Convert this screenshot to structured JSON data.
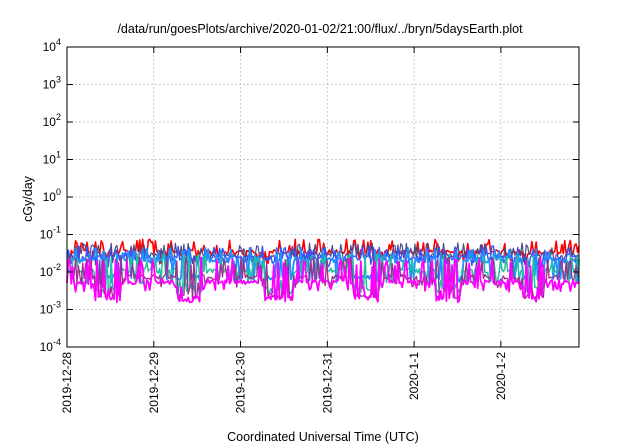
{
  "chart_data": {
    "type": "line",
    "title": "/data/run/goesPlots/archive/2020-01-02/21:00/flux/../bryn/5daysEarth.plot",
    "xlabel": "Coordinated Universal Time (UTC)",
    "ylabel": "cGy/day",
    "yscale": "log",
    "ylim": [
      0.0001,
      10000
    ],
    "xlim": [
      0,
      5.9
    ],
    "grid": true,
    "y_ticks": [
      {
        "base": "10",
        "exp": "-4",
        "value": 0.0001
      },
      {
        "base": "10",
        "exp": "-3",
        "value": 0.001
      },
      {
        "base": "10",
        "exp": "-2",
        "value": 0.01
      },
      {
        "base": "10",
        "exp": "-1",
        "value": 0.1
      },
      {
        "base": "10",
        "exp": "0",
        "value": 1
      },
      {
        "base": "10",
        "exp": "1",
        "value": 10
      },
      {
        "base": "10",
        "exp": "2",
        "value": 100
      },
      {
        "base": "10",
        "exp": "3",
        "value": 1000
      },
      {
        "base": "10",
        "exp": "4",
        "value": 10000
      }
    ],
    "x_ticks": [
      {
        "label": "2019-12-28",
        "value": 0
      },
      {
        "label": "2019-12-29",
        "value": 1
      },
      {
        "label": "2019-12-30",
        "value": 2
      },
      {
        "label": "2019-12-31",
        "value": 3
      },
      {
        "label": "2020-1-1",
        "value": 4
      },
      {
        "label": "2020-1-2",
        "value": 5
      }
    ],
    "series": [
      {
        "color": "#ff0000",
        "base": 0.034,
        "minv": 0.02,
        "spike": 0.075,
        "seed": 11,
        "dipfactor": 0.0,
        "width": 1.6
      },
      {
        "color": "#4a4a8a",
        "base": 0.028,
        "minv": 0.018,
        "spike": 0.06,
        "seed": 23,
        "dipfactor": 0.0,
        "width": 1.2
      },
      {
        "color": "#3355ff",
        "base": 0.024,
        "minv": 0.016,
        "spike": 0.05,
        "seed": 37,
        "dipfactor": 0.0,
        "width": 1.4
      },
      {
        "color": "#1e90ff",
        "base": 0.021,
        "minv": 0.006,
        "spike": 0.045,
        "seed": 41,
        "dipfactor": 0.35,
        "width": 1.8
      },
      {
        "color": "#20c0a0",
        "base": 0.011,
        "minv": 0.0055,
        "spike": 0.03,
        "seed": 53,
        "dipfactor": 0.3,
        "width": 1.5
      },
      {
        "color": "#9a3090",
        "base": 0.0075,
        "minv": 0.0045,
        "spike": 0.025,
        "seed": 67,
        "dipfactor": 0.3,
        "width": 1.3
      },
      {
        "color": "#ff00ff",
        "base": 0.0055,
        "minv": 0.0035,
        "spike": 0.024,
        "seed": 79,
        "dipfactor": 0.35,
        "width": 1.8
      }
    ],
    "points_per_series": 360
  }
}
